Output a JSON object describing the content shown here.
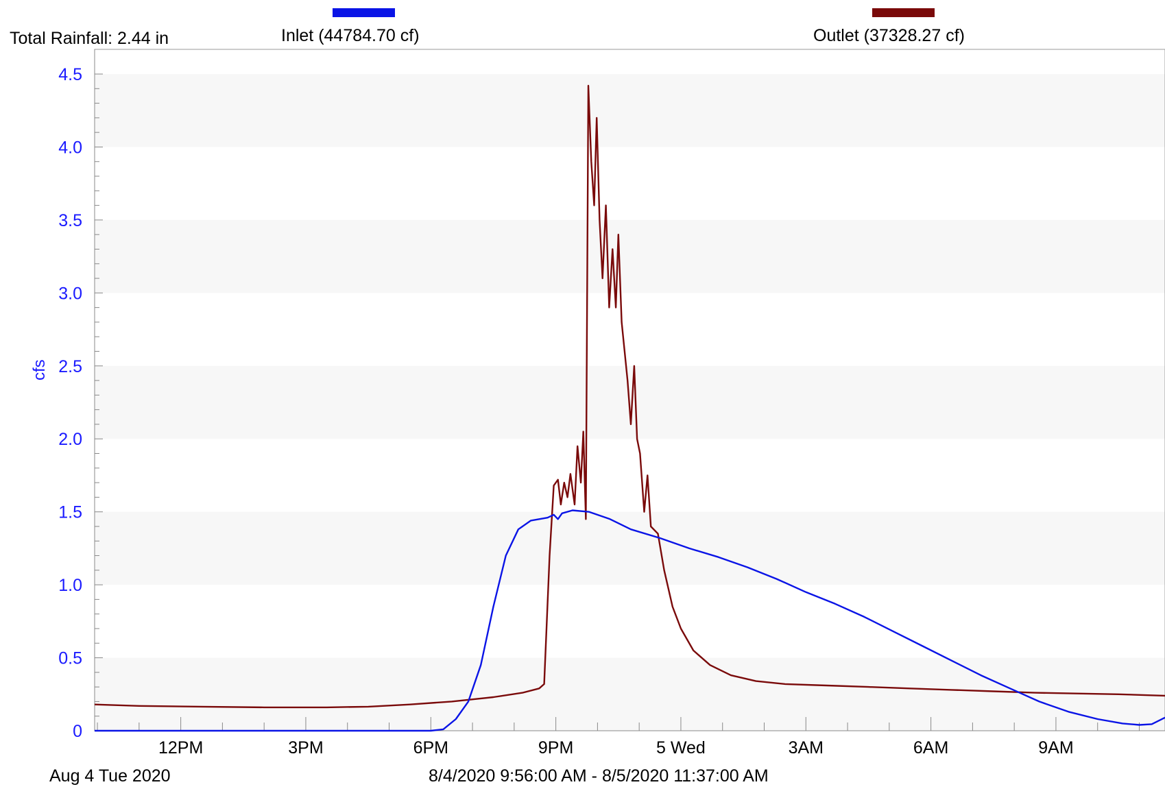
{
  "header": {
    "total_rainfall": "Total Rainfall: 2.44 in"
  },
  "legend": {
    "placement": "top",
    "inlet": {
      "label": "Inlet (44784.70 cf)",
      "color": "#0a14e6"
    },
    "outlet": {
      "label": "Outlet (37328.27 cf)",
      "color": "#7a0a0a"
    }
  },
  "footer": {
    "start_date": "Aug 4 Tue 2020",
    "range": "8/4/2020 9:56:00 AM - 8/5/2020 11:37:00 AM"
  },
  "chart_data": {
    "type": "line",
    "title": "",
    "xlabel": "",
    "ylabel": "cfs",
    "x_unit": "hours since 12AM Aug 4 2020",
    "xlim": [
      9.933,
      35.617
    ],
    "ylim": [
      0,
      4.5
    ],
    "y_ticks": [
      "0",
      "0.5",
      "1.0",
      "1.5",
      "2.0",
      "2.5",
      "3.0",
      "3.5",
      "4.0",
      "4.5"
    ],
    "x_ticks": [
      {
        "x": 12,
        "label": "12PM"
      },
      {
        "x": 15,
        "label": "3PM"
      },
      {
        "x": 18,
        "label": "6PM"
      },
      {
        "x": 21,
        "label": "9PM"
      },
      {
        "x": 24,
        "label": "5 Wed"
      },
      {
        "x": 27,
        "label": "3AM"
      },
      {
        "x": 30,
        "label": "6AM"
      },
      {
        "x": 33,
        "label": "9AM"
      }
    ],
    "grid": "alternating horizontal bands",
    "series": [
      {
        "name": "Inlet (44784.70 cf)",
        "color": "#0a14e6",
        "points": [
          [
            9.933,
            0
          ],
          [
            18.0,
            0
          ],
          [
            18.3,
            0.01
          ],
          [
            18.6,
            0.08
          ],
          [
            18.9,
            0.2
          ],
          [
            19.2,
            0.45
          ],
          [
            19.5,
            0.85
          ],
          [
            19.8,
            1.2
          ],
          [
            20.1,
            1.38
          ],
          [
            20.4,
            1.44
          ],
          [
            20.8,
            1.46
          ],
          [
            20.95,
            1.48
          ],
          [
            21.05,
            1.45
          ],
          [
            21.15,
            1.49
          ],
          [
            21.4,
            1.51
          ],
          [
            21.8,
            1.5
          ],
          [
            22.3,
            1.45
          ],
          [
            22.8,
            1.38
          ],
          [
            23.5,
            1.32
          ],
          [
            24.2,
            1.25
          ],
          [
            24.9,
            1.19
          ],
          [
            25.6,
            1.12
          ],
          [
            26.3,
            1.04
          ],
          [
            27.0,
            0.95
          ],
          [
            27.7,
            0.87
          ],
          [
            28.4,
            0.78
          ],
          [
            29.1,
            0.68
          ],
          [
            29.8,
            0.58
          ],
          [
            30.5,
            0.48
          ],
          [
            31.2,
            0.38
          ],
          [
            31.9,
            0.29
          ],
          [
            32.6,
            0.2
          ],
          [
            33.3,
            0.13
          ],
          [
            34.0,
            0.08
          ],
          [
            34.6,
            0.05
          ],
          [
            35.0,
            0.04
          ],
          [
            35.3,
            0.045
          ],
          [
            35.617,
            0.09
          ]
        ]
      },
      {
        "name": "Outlet (37328.27 cf)",
        "color": "#7a0a0a",
        "points": [
          [
            9.933,
            0.18
          ],
          [
            11.0,
            0.17
          ],
          [
            12.5,
            0.165
          ],
          [
            14.0,
            0.16
          ],
          [
            15.5,
            0.16
          ],
          [
            16.5,
            0.165
          ],
          [
            17.5,
            0.18
          ],
          [
            18.5,
            0.2
          ],
          [
            19.5,
            0.23
          ],
          [
            20.2,
            0.26
          ],
          [
            20.6,
            0.29
          ],
          [
            20.72,
            0.32
          ],
          [
            20.85,
            1.2
          ],
          [
            20.95,
            1.68
          ],
          [
            21.05,
            1.72
          ],
          [
            21.12,
            1.55
          ],
          [
            21.2,
            1.7
          ],
          [
            21.28,
            1.6
          ],
          [
            21.35,
            1.76
          ],
          [
            21.45,
            1.55
          ],
          [
            21.52,
            1.95
          ],
          [
            21.6,
            1.7
          ],
          [
            21.66,
            2.05
          ],
          [
            21.72,
            1.45
          ],
          [
            21.78,
            4.42
          ],
          [
            21.85,
            3.9
          ],
          [
            21.92,
            3.6
          ],
          [
            21.98,
            4.2
          ],
          [
            22.05,
            3.5
          ],
          [
            22.12,
            3.1
          ],
          [
            22.2,
            3.6
          ],
          [
            22.28,
            2.9
          ],
          [
            22.36,
            3.3
          ],
          [
            22.44,
            2.9
          ],
          [
            22.5,
            3.4
          ],
          [
            22.58,
            2.8
          ],
          [
            22.65,
            2.6
          ],
          [
            22.72,
            2.4
          ],
          [
            22.8,
            2.1
          ],
          [
            22.88,
            2.5
          ],
          [
            22.95,
            2.0
          ],
          [
            23.02,
            1.9
          ],
          [
            23.12,
            1.5
          ],
          [
            23.2,
            1.75
          ],
          [
            23.28,
            1.4
          ],
          [
            23.45,
            1.35
          ],
          [
            23.6,
            1.1
          ],
          [
            23.8,
            0.85
          ],
          [
            24.0,
            0.7
          ],
          [
            24.3,
            0.55
          ],
          [
            24.7,
            0.45
          ],
          [
            25.2,
            0.38
          ],
          [
            25.8,
            0.34
          ],
          [
            26.5,
            0.32
          ],
          [
            27.5,
            0.31
          ],
          [
            28.5,
            0.3
          ],
          [
            29.5,
            0.29
          ],
          [
            30.5,
            0.28
          ],
          [
            31.5,
            0.27
          ],
          [
            32.5,
            0.26
          ],
          [
            33.5,
            0.255
          ],
          [
            34.5,
            0.25
          ],
          [
            35.617,
            0.24
          ]
        ]
      }
    ]
  }
}
